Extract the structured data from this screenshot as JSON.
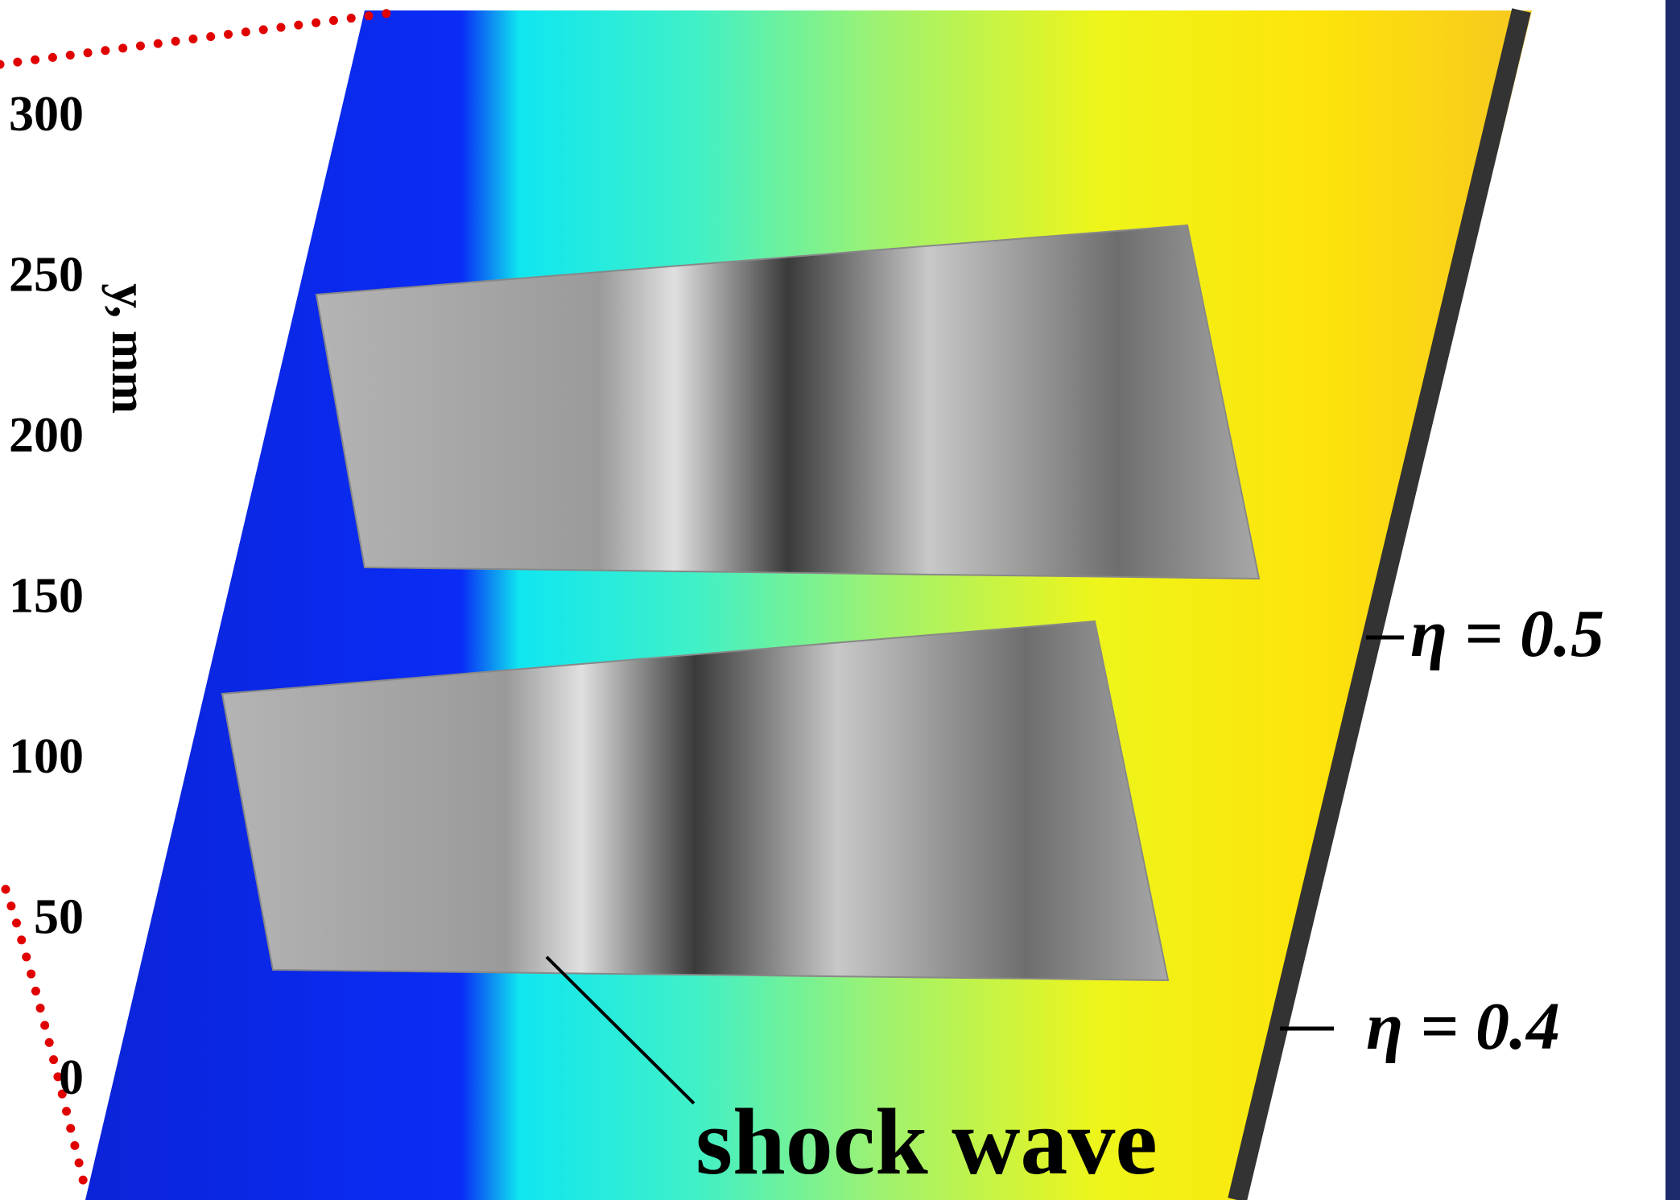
{
  "axis": {
    "title": "y, mm",
    "ticks": [
      "300",
      "250",
      "200",
      "150",
      "100",
      "50",
      "0"
    ]
  },
  "annotations": {
    "eta_upper": "η = 0.5",
    "eta_lower": "η = 0.4",
    "shock": "shock wave"
  }
}
